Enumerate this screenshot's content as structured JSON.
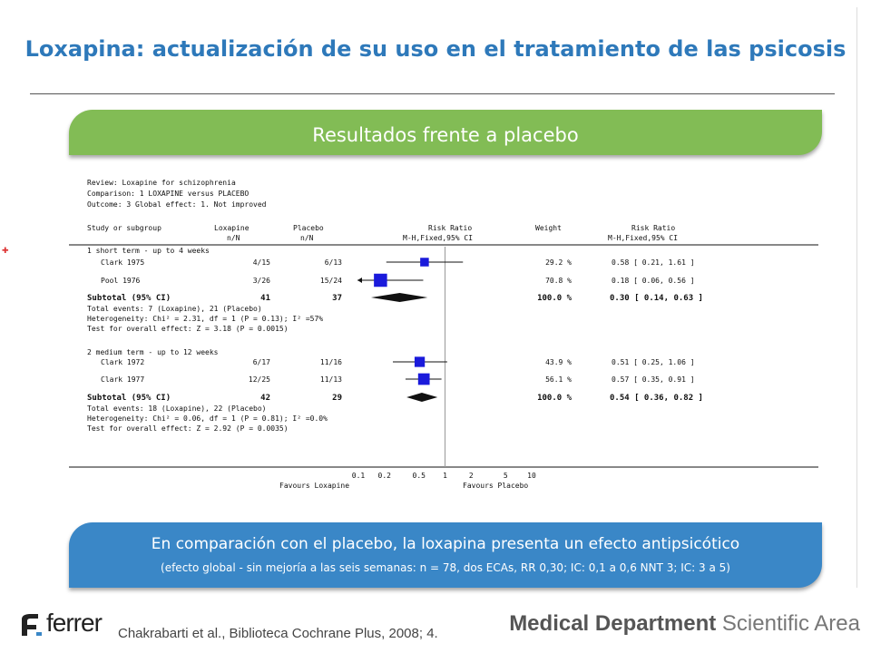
{
  "title": "Loxapina: actualización de su uso en el tratamiento de las psicosis",
  "section_header": "Resultados frente a placebo",
  "conclusion": {
    "main": "En comparación con el placebo, la loxapina presenta un efecto antipsicótico",
    "detail": "(efecto global - sin mejoría a las seis semanas: n = 78, dos ECAs, RR 0,30; IC: 0,1 a 0,6 NNT 3; IC: 3 a 5)"
  },
  "citation": "Chakrabarti et al., Biblioteca Cochrane Plus, 2008; 4.",
  "footer": {
    "brand": "ferrer",
    "dept_bold": "Medical Department",
    "dept_light": "Scientific Area"
  },
  "colors": {
    "title": "#2e79ba",
    "green": "#82bc55",
    "blue": "#3a87c7",
    "marker": "#1a1adb"
  },
  "chart_data": {
    "type": "forest",
    "review": "Review:  Loxapine for schizophrenia",
    "comparison": "Comparison:  1 LOXAPINE versus PLACEBO",
    "outcome": "Outcome:  3 Global effect: 1. Not improved",
    "columns": {
      "study": "Study or subgroup",
      "exp": "Loxapine",
      "exp_sub": "n/N",
      "ctrl": "Placebo",
      "ctrl_sub": "n/N",
      "rr": "Risk Ratio",
      "rr_sub": "M-H,Fixed,95% CI",
      "weight": "Weight",
      "rr2": "Risk Ratio",
      "rr2_sub": "M-H,Fixed,95% CI"
    },
    "scale": "log",
    "x_ticks": [
      "0.1",
      "0.2",
      "0.5",
      "1",
      "2",
      "5",
      "10"
    ],
    "xlim": [
      0.1,
      10
    ],
    "favours_left": "Favours Loxapine",
    "favours_right": "Favours Placebo",
    "groups": [
      {
        "label": "1 short term - up to 4 weeks",
        "studies": [
          {
            "name": "Clark 1975",
            "exp": "4/15",
            "ctrl": "6/13",
            "weight": "29.2 %",
            "ci_text": "0.58 [ 0.21, 1.61 ]",
            "rr": 0.58,
            "lo": 0.21,
            "hi": 1.61,
            "w": 29.2
          },
          {
            "name": "Pool 1976",
            "exp": "3/26",
            "ctrl": "15/24",
            "weight": "70.8 %",
            "ci_text": "0.18 [ 0.06, 0.56 ]",
            "rr": 0.18,
            "lo": 0.06,
            "hi": 0.56,
            "w": 70.8
          }
        ],
        "subtotal": {
          "name": "Subtotal (95% CI)",
          "exp": "41",
          "ctrl": "37",
          "weight": "100.0 %",
          "ci_text": "0.30 [ 0.14, 0.63 ]",
          "rr": 0.3,
          "lo": 0.14,
          "hi": 0.63
        },
        "notes": [
          "Total events: 7 (Loxapine), 21 (Placebo)",
          "Heterogeneity: Chi² = 2.31, df = 1 (P = 0.13); I² =57%",
          "Test for overall effect: Z = 3.18 (P = 0.0015)"
        ]
      },
      {
        "label": "2 medium term - up to 12 weeks",
        "studies": [
          {
            "name": "Clark 1972",
            "exp": "6/17",
            "ctrl": "11/16",
            "weight": "43.9 %",
            "ci_text": "0.51 [ 0.25, 1.06 ]",
            "rr": 0.51,
            "lo": 0.25,
            "hi": 1.06,
            "w": 43.9
          },
          {
            "name": "Clark 1977",
            "exp": "12/25",
            "ctrl": "11/13",
            "weight": "56.1 %",
            "ci_text": "0.57 [ 0.35, 0.91 ]",
            "rr": 0.57,
            "lo": 0.35,
            "hi": 0.91,
            "w": 56.1
          }
        ],
        "subtotal": {
          "name": "Subtotal (95% CI)",
          "exp": "42",
          "ctrl": "29",
          "weight": "100.0 %",
          "ci_text": "0.54 [ 0.36, 0.82 ]",
          "rr": 0.54,
          "lo": 0.36,
          "hi": 0.82
        },
        "notes": [
          "Total events: 18 (Loxapine), 22 (Placebo)",
          "Heterogeneity: Chi² = 0.06, df = 1 (P = 0.81); I² =0.0%",
          "Test for overall effect: Z = 2.92 (P = 0.0035)"
        ]
      }
    ]
  }
}
